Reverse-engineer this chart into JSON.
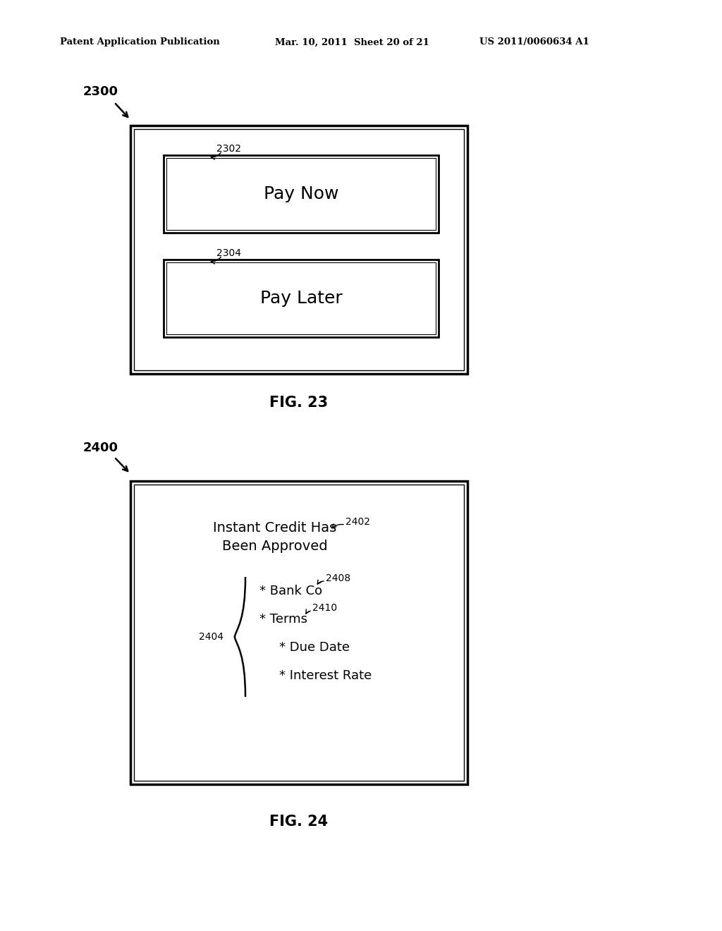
{
  "bg_color": "#ffffff",
  "header_left": "Patent Application Publication",
  "header_mid": "Mar. 10, 2011  Sheet 20 of 21",
  "header_right": "US 2011/0060634 A1",
  "fig23_label": "2300",
  "fig23_caption": "FIG. 23",
  "fig24_label": "2400",
  "fig24_caption": "FIG. 24",
  "box2302_label": "2302",
  "box2302_text": "Pay Now",
  "box2304_label": "2304",
  "box2304_text": "Pay Later",
  "box2402_label": "2402",
  "box2402_text1": "Instant Credit Has",
  "box2402_text2": "Been Approved",
  "box2404_label": "2404",
  "box2408_label": "2408",
  "box2408_text": "* Bank Co",
  "box2410_label": "2410",
  "box2410_text": "* Terms",
  "item1_text": "* Due Date",
  "item2_text": "* Interest Rate",
  "text_color": "#000000",
  "line_color": "#000000",
  "font_size_header": 9.5,
  "font_size_label": 13,
  "font_size_button": 18,
  "font_size_caption": 15,
  "font_size_content": 13,
  "font_size_ref": 10
}
